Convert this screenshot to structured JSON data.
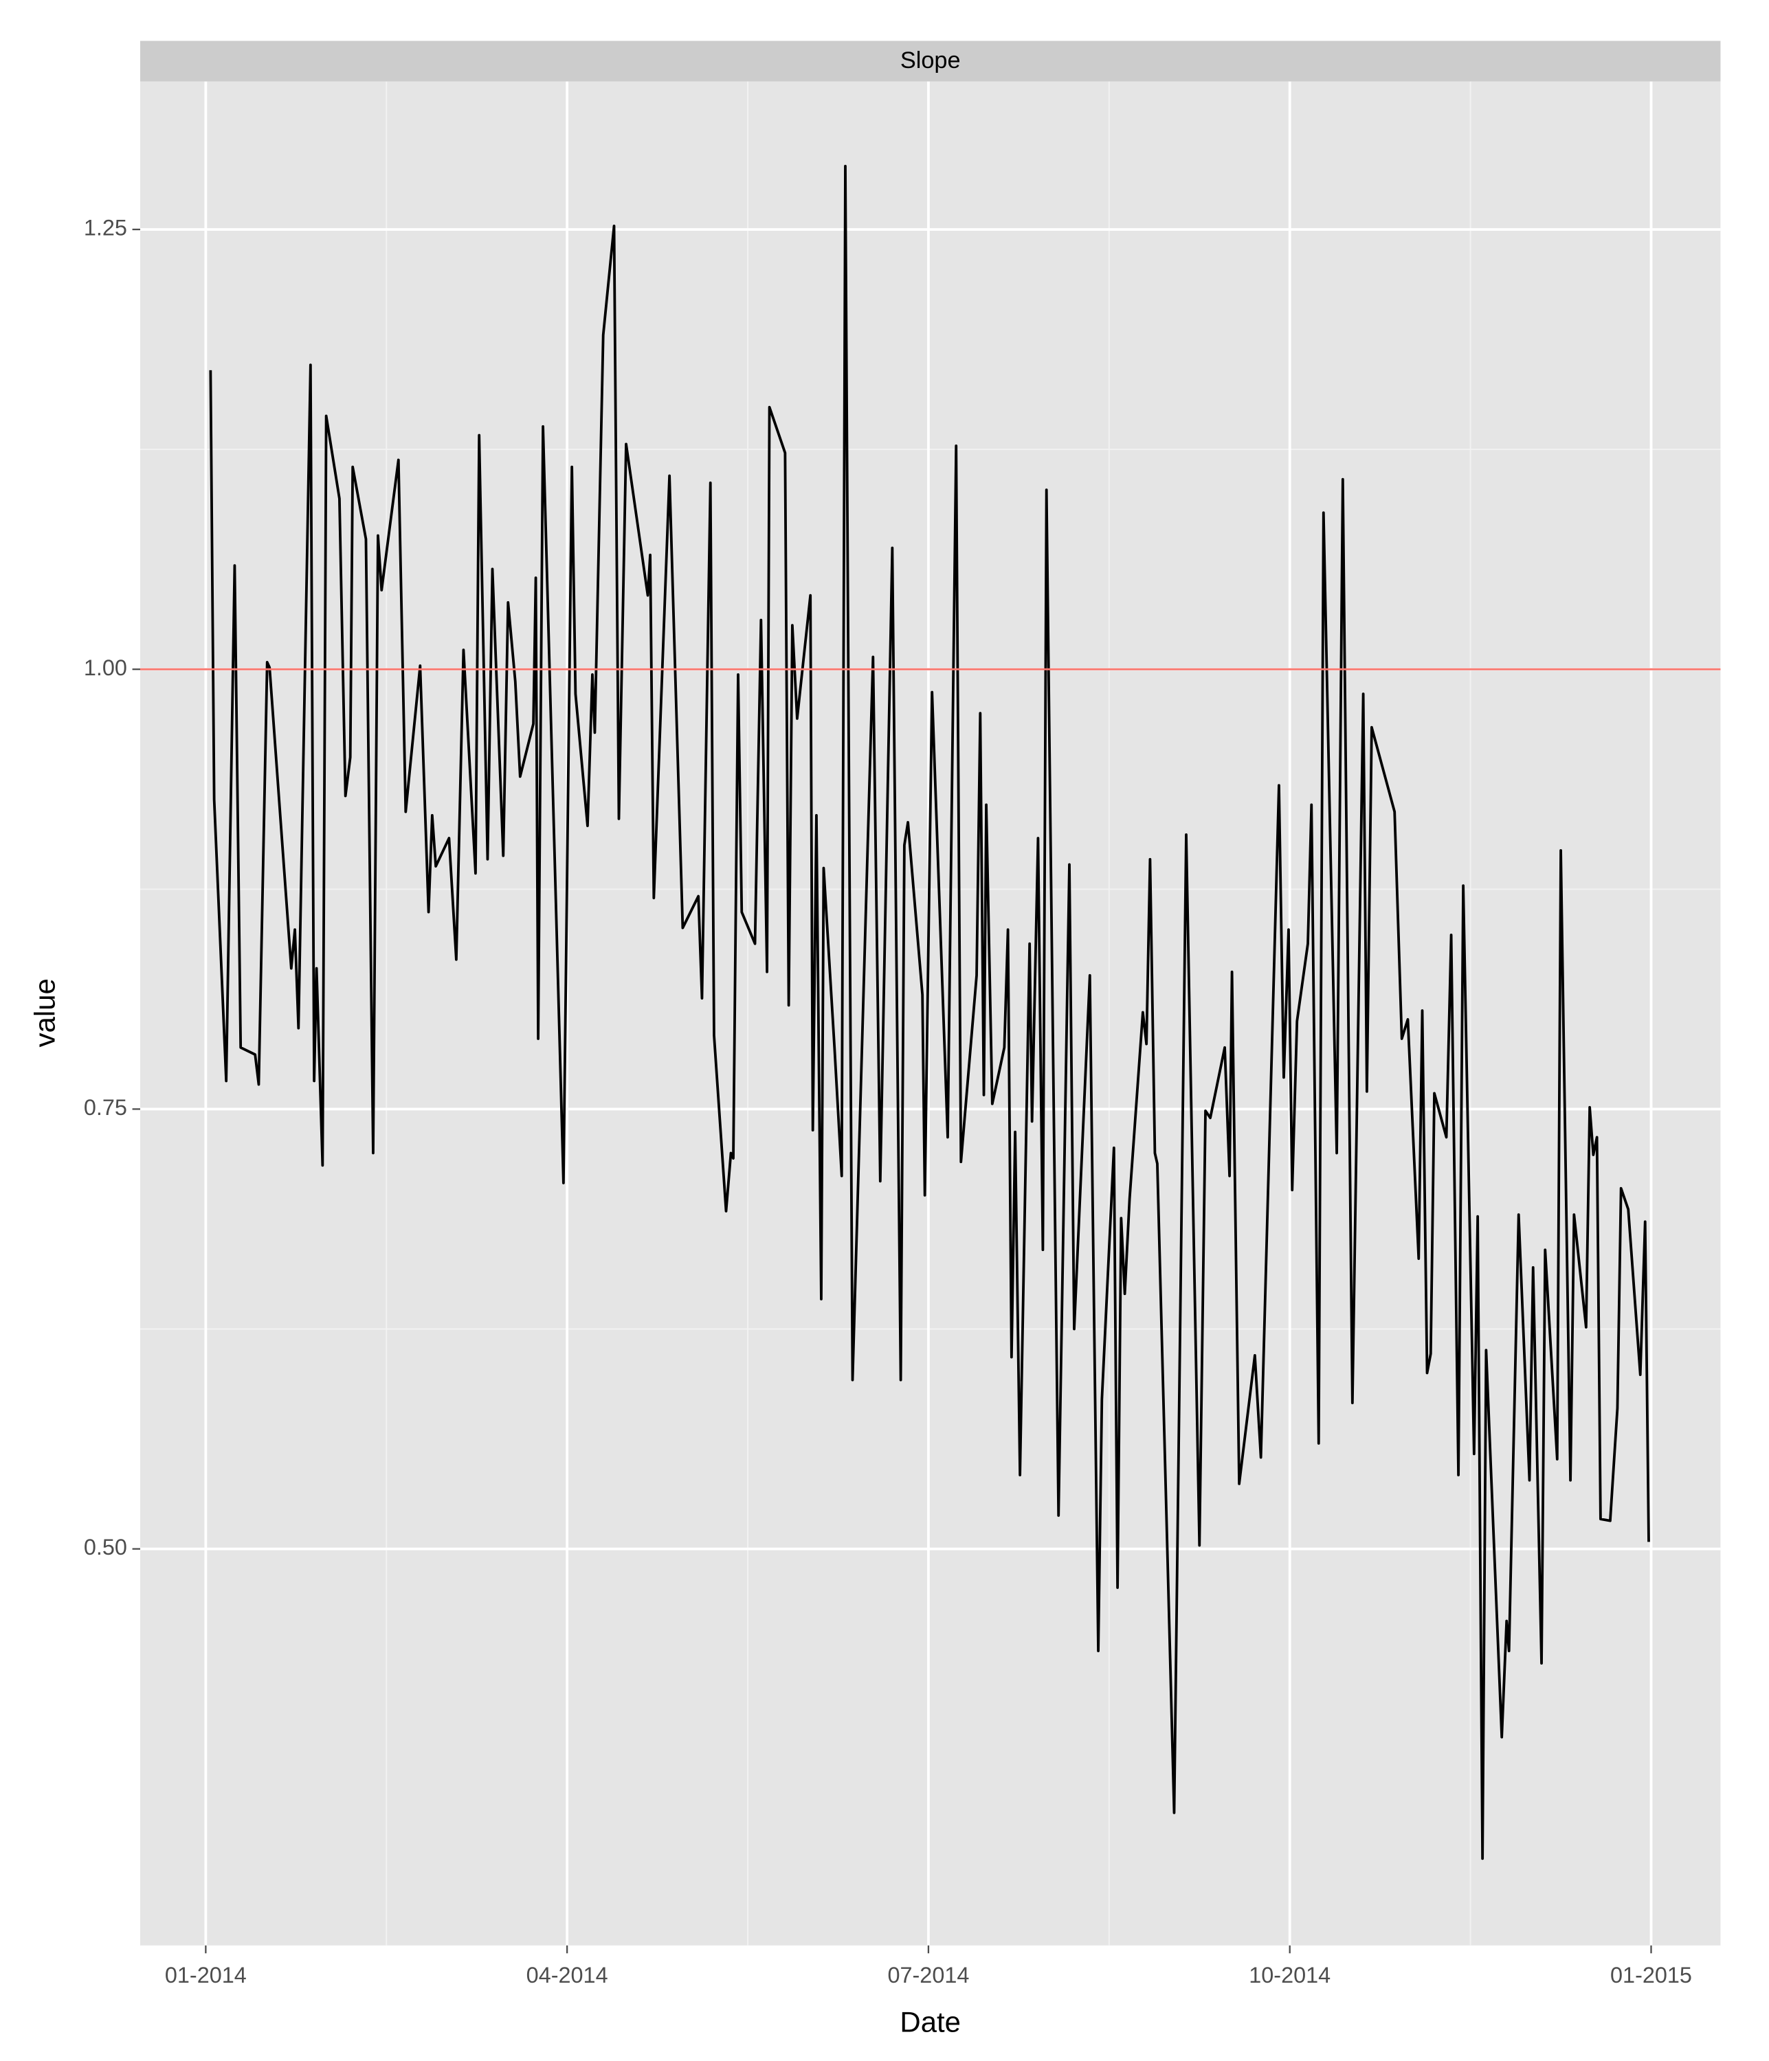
{
  "chart_data": {
    "type": "line",
    "facet_title": "Slope",
    "x_label": "Date",
    "y_label": "value",
    "x": [
      0.04,
      0.07,
      0.17,
      0.24,
      0.29,
      0.41,
      0.44,
      0.51,
      0.53,
      0.71,
      0.74,
      0.77,
      0.87,
      0.9,
      0.92,
      0.97,
      1.0,
      1.11,
      1.16,
      1.2,
      1.22,
      1.33,
      1.39,
      1.43,
      1.46,
      1.6,
      1.66,
      1.78,
      1.85,
      1.88,
      1.91,
      2.02,
      2.08,
      2.14,
      2.24,
      2.27,
      2.34,
      2.38,
      2.47,
      2.51,
      2.57,
      2.61,
      2.72,
      2.74,
      2.76,
      2.8,
      2.97,
      3.04,
      3.07,
      3.17,
      3.21,
      3.23,
      3.3,
      3.39,
      3.43,
      3.49,
      3.67,
      3.69,
      3.72,
      3.85,
      3.96,
      4.09,
      4.12,
      4.19,
      4.22,
      4.32,
      4.36,
      4.38,
      4.42,
      4.45,
      4.56,
      4.61,
      4.66,
      4.68,
      4.81,
      4.84,
      4.87,
      4.91,
      5.02,
      5.04,
      5.07,
      5.11,
      5.13,
      5.22,
      5.28,
      5.31,
      5.37,
      5.54,
      5.6,
      5.7,
      5.77,
      5.8,
      5.83,
      5.95,
      5.97,
      6.03,
      6.16,
      6.23,
      6.27,
      6.4,
      6.43,
      6.46,
      6.48,
      6.53,
      6.63,
      6.66,
      6.69,
      6.72,
      6.76,
      6.84,
      6.86,
      6.91,
      6.95,
      6.98,
      7.08,
      7.17,
      7.21,
      7.34,
      7.41,
      7.44,
      7.54,
      7.57,
      7.6,
      7.63,
      7.67,
      7.78,
      7.81,
      7.84,
      7.88,
      7.9,
      8.04,
      8.14,
      8.25,
      8.3,
      8.34,
      8.46,
      8.5,
      8.52,
      8.58,
      8.71,
      8.76,
      8.91,
      8.95,
      8.99,
      9.02,
      9.06,
      9.15,
      9.18,
      9.24,
      9.28,
      9.39,
      9.44,
      9.52,
      9.61,
      9.64,
      9.68,
      9.87,
      9.93,
      9.98,
      10.07,
      10.1,
      10.14,
      10.17,
      10.2,
      10.3,
      10.34,
      10.4,
      10.44,
      10.53,
      10.56,
      10.6,
      10.63,
      10.76,
      10.8,
      10.82,
      10.9,
      10.99,
      11.02,
      11.09,
      11.12,
      11.22,
      11.25,
      11.33,
      11.36,
      11.46,
      11.49,
      11.52,
      11.55,
      11.58,
      11.66,
      11.72,
      11.75,
      11.81,
      11.91,
      11.95,
      11.98
    ],
    "series": [
      {
        "name": "Slope",
        "color": "#000000",
        "values": [
          1.17,
          0.926,
          0.766,
          1.059,
          0.785,
          0.781,
          0.764,
          1.004,
          1.001,
          0.83,
          0.852,
          0.796,
          1.173,
          0.766,
          0.83,
          0.718,
          1.144,
          1.097,
          0.928,
          0.95,
          1.115,
          1.074,
          0.725,
          1.076,
          1.045,
          1.119,
          0.919,
          1.002,
          0.862,
          0.917,
          0.888,
          0.904,
          0.835,
          1.011,
          0.884,
          1.133,
          0.892,
          1.057,
          0.894,
          1.038,
          0.993,
          0.939,
          0.969,
          1.052,
          0.79,
          1.138,
          0.708,
          1.115,
          0.986,
          0.911,
          0.997,
          0.964,
          1.19,
          1.252,
          0.915,
          1.128,
          1.042,
          1.065,
          0.87,
          1.11,
          0.853,
          0.871,
          0.813,
          1.106,
          0.792,
          0.692,
          0.725,
          0.722,
          0.997,
          0.862,
          0.844,
          1.028,
          0.828,
          1.149,
          1.123,
          0.809,
          1.025,
          0.972,
          1.042,
          0.738,
          0.917,
          0.642,
          0.887,
          0.785,
          0.712,
          1.286,
          0.596,
          1.007,
          0.709,
          1.069,
          0.596,
          0.9,
          0.913,
          0.815,
          0.701,
          0.987,
          0.734,
          1.127,
          0.72,
          0.826,
          0.975,
          0.758,
          0.923,
          0.753,
          0.785,
          0.852,
          0.609,
          0.737,
          0.542,
          0.844,
          0.743,
          0.904,
          0.67,
          1.102,
          0.519,
          0.889,
          0.625,
          0.826,
          0.442,
          0.585,
          0.728,
          0.478,
          0.688,
          0.645,
          0.699,
          0.805,
          0.787,
          0.892,
          0.725,
          0.719,
          0.35,
          0.906,
          0.502,
          0.749,
          0.745,
          0.785,
          0.712,
          0.828,
          0.537,
          0.61,
          0.552,
          0.934,
          0.768,
          0.852,
          0.704,
          0.8,
          0.844,
          0.923,
          0.56,
          1.089,
          0.725,
          1.108,
          0.583,
          0.986,
          0.76,
          0.967,
          0.919,
          0.79,
          0.801,
          0.665,
          0.806,
          0.6,
          0.611,
          0.759,
          0.734,
          0.849,
          0.542,
          0.877,
          0.554,
          0.689,
          0.324,
          0.613,
          0.393,
          0.459,
          0.442,
          0.69,
          0.539,
          0.66,
          0.435,
          0.67,
          0.551,
          0.897,
          0.539,
          0.69,
          0.626,
          0.751,
          0.724,
          0.734,
          0.517,
          0.516,
          0.58,
          0.705,
          0.693,
          0.599,
          0.686,
          0.504
        ]
      }
    ],
    "reference_line": {
      "value": 1,
      "color": "#F8766D"
    },
    "xlim": [
      -0.544,
      12.576
    ],
    "xticks": [
      {
        "value": 0,
        "label": "01-2014"
      },
      {
        "value": 3,
        "label": "04-2014"
      },
      {
        "value": 6,
        "label": "07-2014"
      },
      {
        "value": 9,
        "label": "10-2014"
      },
      {
        "value": 12,
        "label": "01-2015"
      }
    ],
    "ylim": [
      0.2746,
      1.3341
    ],
    "yticks": [
      {
        "value": 0.5,
        "label": "0.50"
      },
      {
        "value": 0.75,
        "label": "0.75"
      },
      {
        "value": 1,
        "label": "1.00"
      },
      1.25
    ],
    "grid": true
  }
}
